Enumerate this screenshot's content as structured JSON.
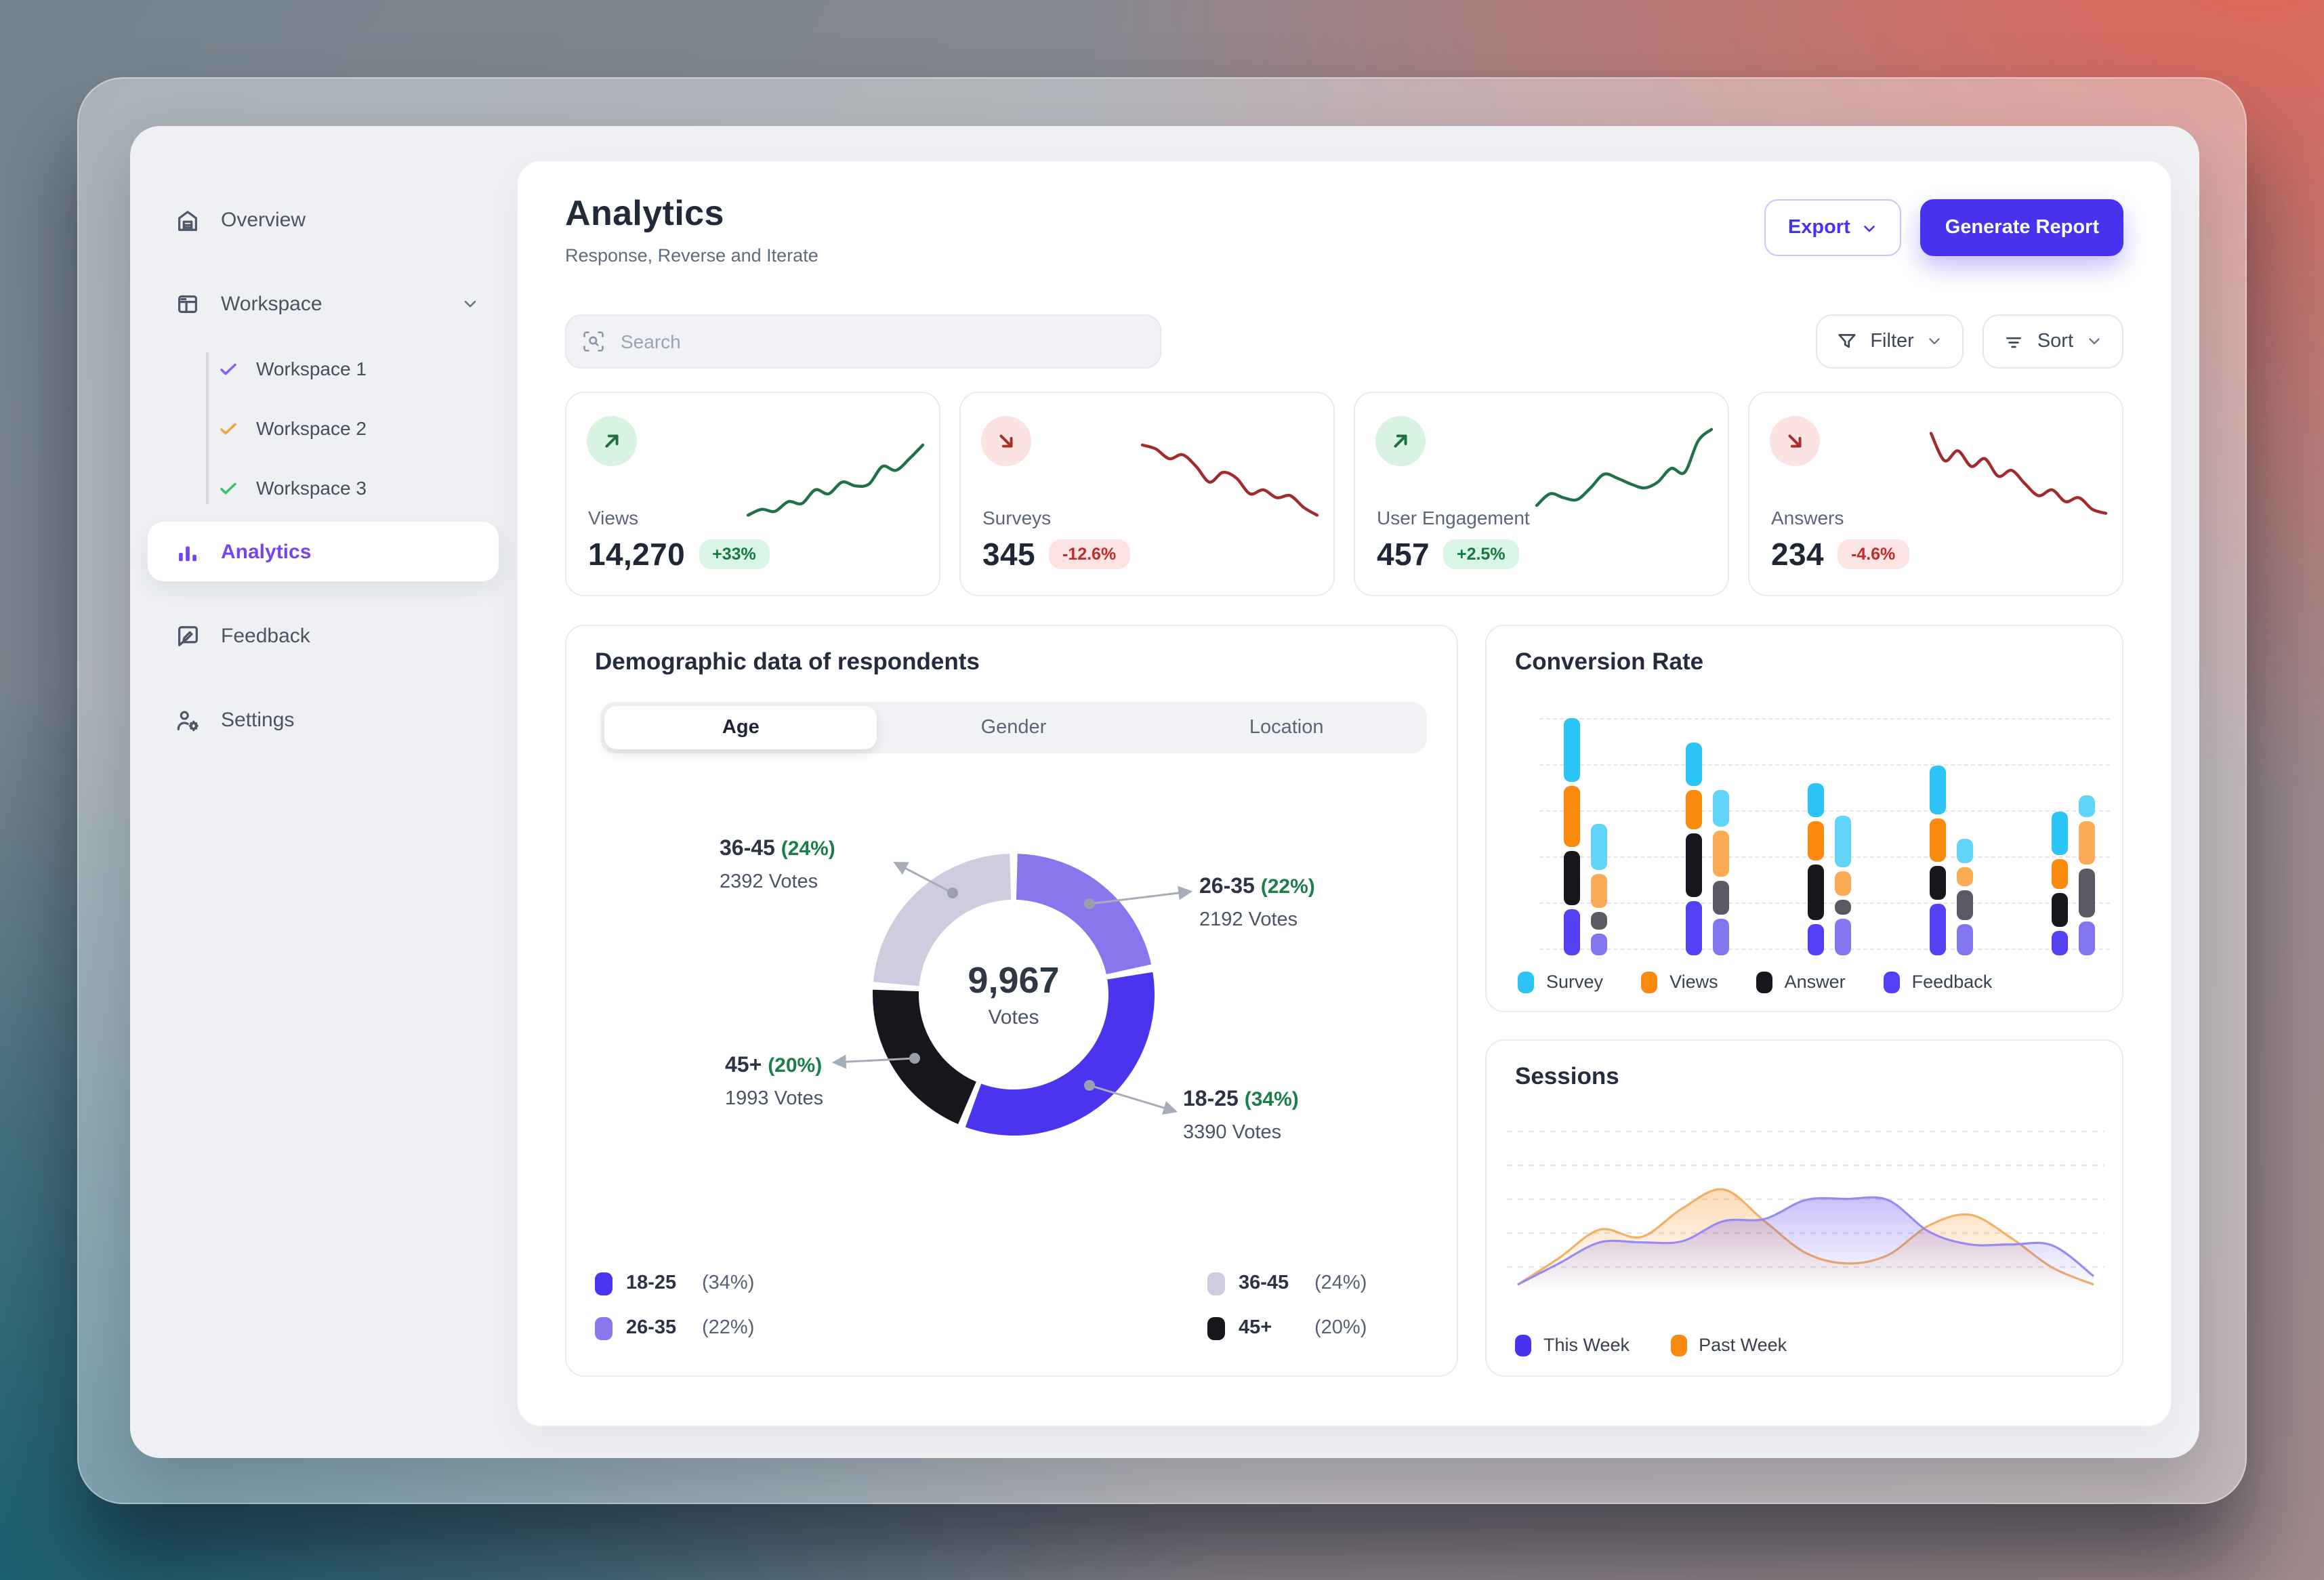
{
  "colors": {
    "accent": "#4733ee",
    "sidebar_active": "#7645f0",
    "positive_text": "#177a43",
    "positive_bg": "#d9f5e6",
    "negative_text": "#bf2c2c",
    "negative_bg": "#fde4e4"
  },
  "sidebar": {
    "overview": "Overview",
    "workspace": "Workspace",
    "workspace_children": [
      "Workspace 1",
      "Workspace 2",
      "Workspace 3"
    ],
    "analytics": "Analytics",
    "feedback": "Feedback",
    "settings": "Settings"
  },
  "header": {
    "title": "Analytics",
    "subtitle": "Response, Reverse and Iterate",
    "export_label": "Export",
    "generate_label": "Generate Report"
  },
  "toolbar": {
    "search_placeholder": "Search",
    "filter_label": "Filter",
    "sort_label": "Sort"
  },
  "stats": {
    "cards": [
      {
        "label": "Views",
        "value": "14,270",
        "delta": "+33%",
        "trend": "up"
      },
      {
        "label": "Surveys",
        "value": "345",
        "delta": "-12.6%",
        "trend": "down"
      },
      {
        "label": "User Engagement",
        "value": "457",
        "delta": "+2.5%",
        "trend": "up"
      },
      {
        "label": "Answers",
        "value": "234",
        "delta": "-4.6%",
        "trend": "down"
      }
    ]
  },
  "demographic": {
    "title": "Demographic data of respondents",
    "tabs": [
      {
        "label": "Age",
        "active": true
      },
      {
        "label": "Gender",
        "active": false
      },
      {
        "label": "Location",
        "active": false
      }
    ],
    "center_value": "9,967",
    "center_label": "Votes",
    "callouts": [
      {
        "label": "36-45",
        "pct": "(24%)",
        "votes": "2392 Votes"
      },
      {
        "label": "26-35",
        "pct": "(22%)",
        "votes": "2192 Votes"
      },
      {
        "label": "45+",
        "pct": "(20%)",
        "votes": "1993 Votes"
      },
      {
        "label": "18-25",
        "pct": "(34%)",
        "votes": "3390 Votes"
      }
    ],
    "legend": [
      {
        "label": "18-25",
        "pct": "(34%)",
        "color": "#4b34ee"
      },
      {
        "label": "26-35",
        "pct": "(22%)",
        "color": "#8a76ec"
      },
      {
        "label": "36-45",
        "pct": "(24%)",
        "color": "#cfccdf"
      },
      {
        "label": "45+",
        "pct": "(20%)",
        "color": "#17161d"
      }
    ]
  },
  "conversion": {
    "title": "Conversion Rate",
    "legend": [
      {
        "label": "Survey",
        "color": "#2bc4f5"
      },
      {
        "label": "Views",
        "color": "#f98a0d"
      },
      {
        "label": "Answer",
        "color": "#17161d"
      },
      {
        "label": "Feedback",
        "color": "#5340f2"
      }
    ]
  },
  "sessions": {
    "title": "Sessions",
    "legend": [
      {
        "label": "This Week",
        "color": "#4733ee"
      },
      {
        "label": "Past Week",
        "color": "#f98a0d"
      }
    ]
  },
  "chart_data": [
    {
      "id": "age_donut",
      "type": "pie",
      "donut": true,
      "title": "Demographic data of respondents (Age)",
      "center_total": "9,967 Votes",
      "direction": "clockwise from 12 o'clock",
      "segments": [
        {
          "label": "26-35",
          "pct": 22,
          "votes": 2192,
          "color": "#8a76ec"
        },
        {
          "label": "18-25",
          "pct": 34,
          "votes": 3390,
          "color": "#4b34ee"
        },
        {
          "label": "45+",
          "pct": 20,
          "votes": 1993,
          "color": "#17161d"
        },
        {
          "label": "36-45",
          "pct": 24,
          "votes": 2392,
          "color": "#cfccdf"
        }
      ]
    },
    {
      "id": "conversion_rate",
      "type": "bar",
      "title": "Conversion Rate",
      "stacked": true,
      "grid": "dashed horizontal",
      "axes": "hidden",
      "series_order": [
        "Survey",
        "Views",
        "Answer",
        "Feedback"
      ],
      "primary_colors": [
        "#2bc4f5",
        "#f98a0d",
        "#17161d",
        "#5340f2"
      ],
      "secondary_colors": [
        "#62d4f8",
        "#fbab55",
        "#5a5a64",
        "#8377ef"
      ],
      "unit": "relative segment heights (no axis labels shown)",
      "groups": [
        {
          "primary": [
            47,
            45,
            40,
            34
          ],
          "secondary": [
            34,
            25,
            13,
            16
          ]
        },
        {
          "primary": [
            32,
            29,
            47,
            40
          ],
          "secondary": [
            27,
            34,
            25,
            27
          ]
        },
        {
          "primary": [
            25,
            29,
            41,
            23
          ],
          "secondary": [
            38,
            18,
            11,
            27
          ]
        },
        {
          "primary": [
            36,
            32,
            25,
            38
          ],
          "secondary": [
            18,
            14,
            22,
            23
          ]
        },
        {
          "primary": [
            32,
            22,
            25,
            18
          ],
          "secondary": [
            16,
            32,
            36,
            25
          ]
        }
      ]
    },
    {
      "id": "sessions",
      "type": "area",
      "title": "Sessions",
      "grid": "dashed horizontal",
      "axes": "hidden",
      "unit": "relative values 0-100 (no axis labels shown)",
      "series": [
        {
          "name": "Past Week",
          "color": "#f98a0d",
          "stroke": "#f2b066",
          "values": [
            0,
            25,
            52,
            45,
            72,
            90,
            60,
            30,
            20,
            28,
            56,
            66,
            44,
            16,
            0
          ]
        },
        {
          "name": "This Week",
          "color": "#4733ee",
          "stroke": "#978bf2",
          "values": [
            0,
            20,
            40,
            40,
            41,
            60,
            62,
            80,
            81,
            80,
            50,
            38,
            38,
            37,
            8
          ]
        }
      ]
    },
    {
      "id": "stat_sparklines",
      "type": "line",
      "title": "Stat card trend sparklines",
      "axes": "hidden",
      "series": [
        {
          "name": "Views",
          "color": "#20714a",
          "values": [
            8,
            14,
            12,
            22,
            20,
            34,
            30,
            42,
            38,
            40,
            58,
            54,
            66,
            80
          ]
        },
        {
          "name": "Surveys",
          "color": "#a02c2c",
          "values": [
            80,
            76,
            66,
            70,
            58,
            42,
            52,
            46,
            30,
            34,
            26,
            28,
            16,
            8
          ]
        },
        {
          "name": "User Engagement",
          "color": "#20714a",
          "values": [
            18,
            30,
            26,
            24,
            36,
            50,
            46,
            40,
            36,
            42,
            56,
            52,
            84,
            96
          ]
        },
        {
          "name": "Answers",
          "color": "#a02c2c",
          "values": [
            92,
            64,
            74,
            58,
            66,
            48,
            54,
            40,
            28,
            34,
            22,
            26,
            14,
            10
          ]
        }
      ]
    }
  ]
}
